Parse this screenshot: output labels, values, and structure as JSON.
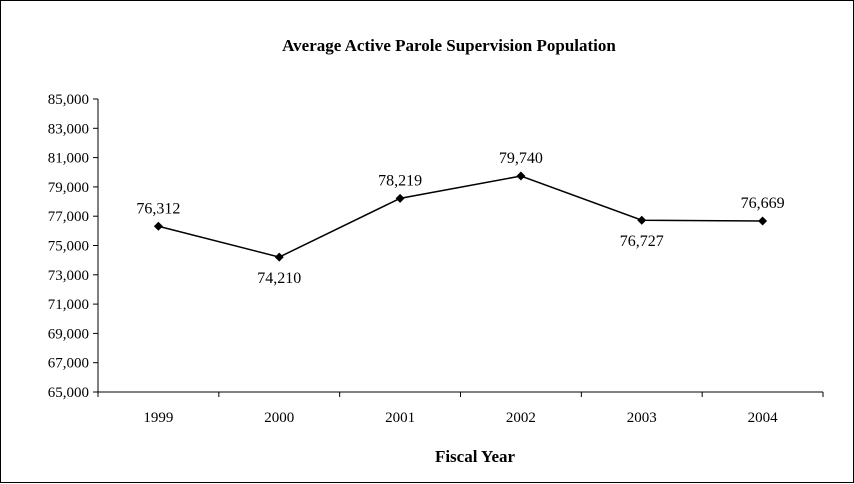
{
  "chart_data": {
    "type": "line",
    "title": "Average Active Parole Supervision Population",
    "xlabel": "Fiscal Year",
    "ylabel": "",
    "categories": [
      "1999",
      "2000",
      "2001",
      "2002",
      "2003",
      "2004"
    ],
    "series": [
      {
        "values": [
          76312,
          74210,
          78219,
          79740,
          76727,
          76669
        ]
      }
    ],
    "data_labels": [
      "76,312",
      "74,210",
      "78,219",
      "79,740",
      "76,727",
      "76,669"
    ],
    "label_position": [
      "above",
      "below",
      "above",
      "above",
      "below",
      "above"
    ],
    "ylim": [
      65000,
      85000
    ],
    "yticks": [
      65000,
      67000,
      69000,
      71000,
      73000,
      75000,
      77000,
      79000,
      81000,
      83000,
      85000
    ],
    "ytick_labels": [
      "65,000",
      "67,000",
      "69,000",
      "71,000",
      "73,000",
      "75,000",
      "77,000",
      "79,000",
      "81,000",
      "83,000",
      "85,000"
    ],
    "grid": false,
    "legend": "none",
    "marker": "diamond",
    "line_color": "#000000"
  }
}
